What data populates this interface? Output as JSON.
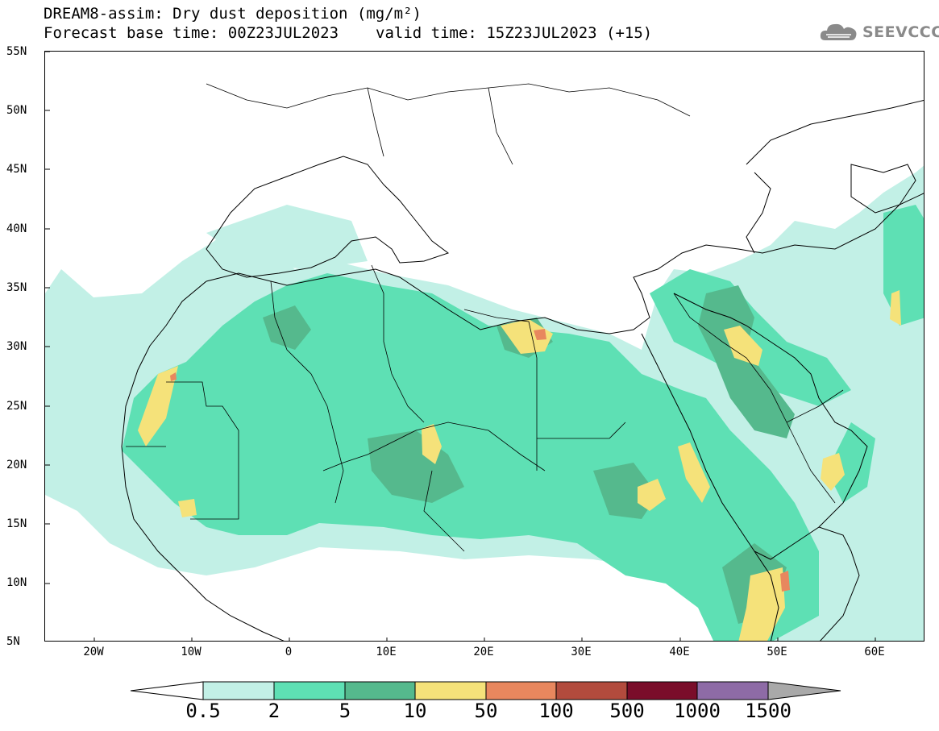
{
  "header": {
    "title": "DREAM8-assim: Dry dust deposition (mg/m²)",
    "base_time": "Forecast base time: 00Z23JUL2023",
    "valid_time": "valid time: 15Z23JUL2023 (+15)"
  },
  "logo": {
    "text": "SEEVCCC",
    "icon": "cloud-icon"
  },
  "map": {
    "latitude_labels": [
      "55N",
      "50N",
      "45N",
      "40N",
      "35N",
      "30N",
      "25N",
      "20N",
      "15N",
      "10N",
      "5N"
    ],
    "longitude_labels": [
      "20W",
      "10W",
      "0",
      "10E",
      "20E",
      "30E",
      "40E",
      "50E",
      "60E"
    ],
    "lon_range": [
      -25,
      65
    ],
    "lat_range": [
      5,
      55
    ]
  },
  "colorbar": {
    "labels": [
      "0.5",
      "2",
      "5",
      "10",
      "50",
      "100",
      "500",
      "1000",
      "1500"
    ],
    "colors": [
      "#c2f0e6",
      "#5ee0b4",
      "#55b98d",
      "#f5e27a",
      "#e8875e",
      "#b24b3d",
      "#7a0d2a",
      "#8e6ba6"
    ],
    "extend_high_color": "#a9a9a9",
    "extend_low_color": "#ffffff"
  }
}
